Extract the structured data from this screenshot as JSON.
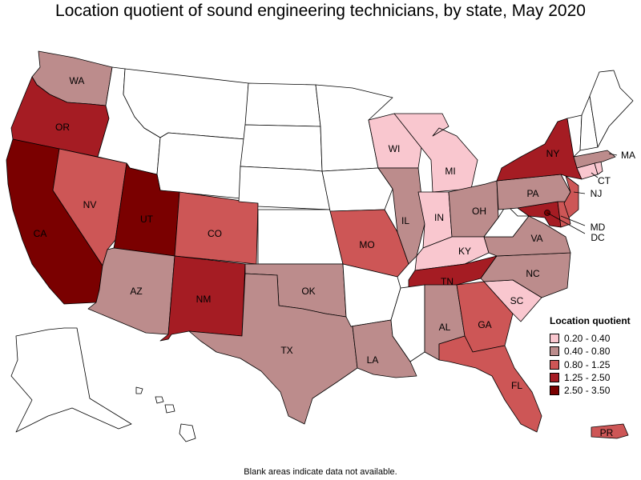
{
  "title": "Location quotient of sound engineering technicians, by state, May 2020",
  "footnote": "Blank areas indicate data not available.",
  "legend": {
    "title": "Location quotient",
    "items": [
      {
        "label": "0.20 - 0.40",
        "color": "#f9c7cf"
      },
      {
        "label": "0.40 - 0.80",
        "color": "#bc8c8c"
      },
      {
        "label": "0.80 - 1.25",
        "color": "#cd5656"
      },
      {
        "label": "1.25 - 2.50",
        "color": "#a51c23"
      },
      {
        "label": "2.50 - 3.50",
        "color": "#7a0000"
      }
    ]
  },
  "no_data_color": "#ffffff",
  "states": {
    "WA": {
      "label": "WA",
      "class": 1
    },
    "OR": {
      "label": "OR",
      "class": 3
    },
    "CA": {
      "label": "CA",
      "class": 4
    },
    "NV": {
      "label": "NV",
      "class": 2
    },
    "UT": {
      "label": "UT",
      "class": 4
    },
    "AZ": {
      "label": "AZ",
      "class": 1
    },
    "CO": {
      "label": "CO",
      "class": 2
    },
    "NM": {
      "label": "NM",
      "class": 3
    },
    "TX": {
      "label": "TX",
      "class": 1
    },
    "OK": {
      "label": "OK",
      "class": 1
    },
    "MO": {
      "label": "MO",
      "class": 2
    },
    "IL": {
      "label": "IL",
      "class": 1
    },
    "WI": {
      "label": "WI",
      "class": 0
    },
    "MI": {
      "label": "MI",
      "class": 0
    },
    "IN": {
      "label": "IN",
      "class": 0
    },
    "OH": {
      "label": "OH",
      "class": 1
    },
    "KY": {
      "label": "KY",
      "class": 0
    },
    "TN": {
      "label": "TN",
      "class": 3
    },
    "AL": {
      "label": "AL",
      "class": 1
    },
    "GA": {
      "label": "GA",
      "class": 2
    },
    "FL": {
      "label": "FL",
      "class": 2
    },
    "SC": {
      "label": "SC",
      "class": 0
    },
    "NC": {
      "label": "NC",
      "class": 1
    },
    "VA": {
      "label": "VA",
      "class": 1
    },
    "LA": {
      "label": "LA",
      "class": 1
    },
    "PA": {
      "label": "PA",
      "class": 1
    },
    "NY": {
      "label": "NY",
      "class": 3
    },
    "NJ": {
      "label": "NJ",
      "class": 2
    },
    "MD": {
      "label": "MD",
      "class": 3
    },
    "DC": {
      "label": "DC",
      "class": 4
    },
    "CT": {
      "label": "CT",
      "class": 0
    },
    "MA": {
      "label": "MA",
      "class": 1
    },
    "RI": {
      "class": 0
    },
    "DE": {
      "class": 2
    },
    "PR": {
      "label": "PR",
      "class": 2
    },
    "ID": {},
    "MT": {},
    "WY": {},
    "ND": {},
    "SD": {},
    "NE": {},
    "KS": {},
    "MN": {},
    "IA": {},
    "AR": {},
    "MS": {},
    "WV": {},
    "VT": {},
    "NH": {},
    "ME": {},
    "AK": {},
    "HI": {}
  }
}
